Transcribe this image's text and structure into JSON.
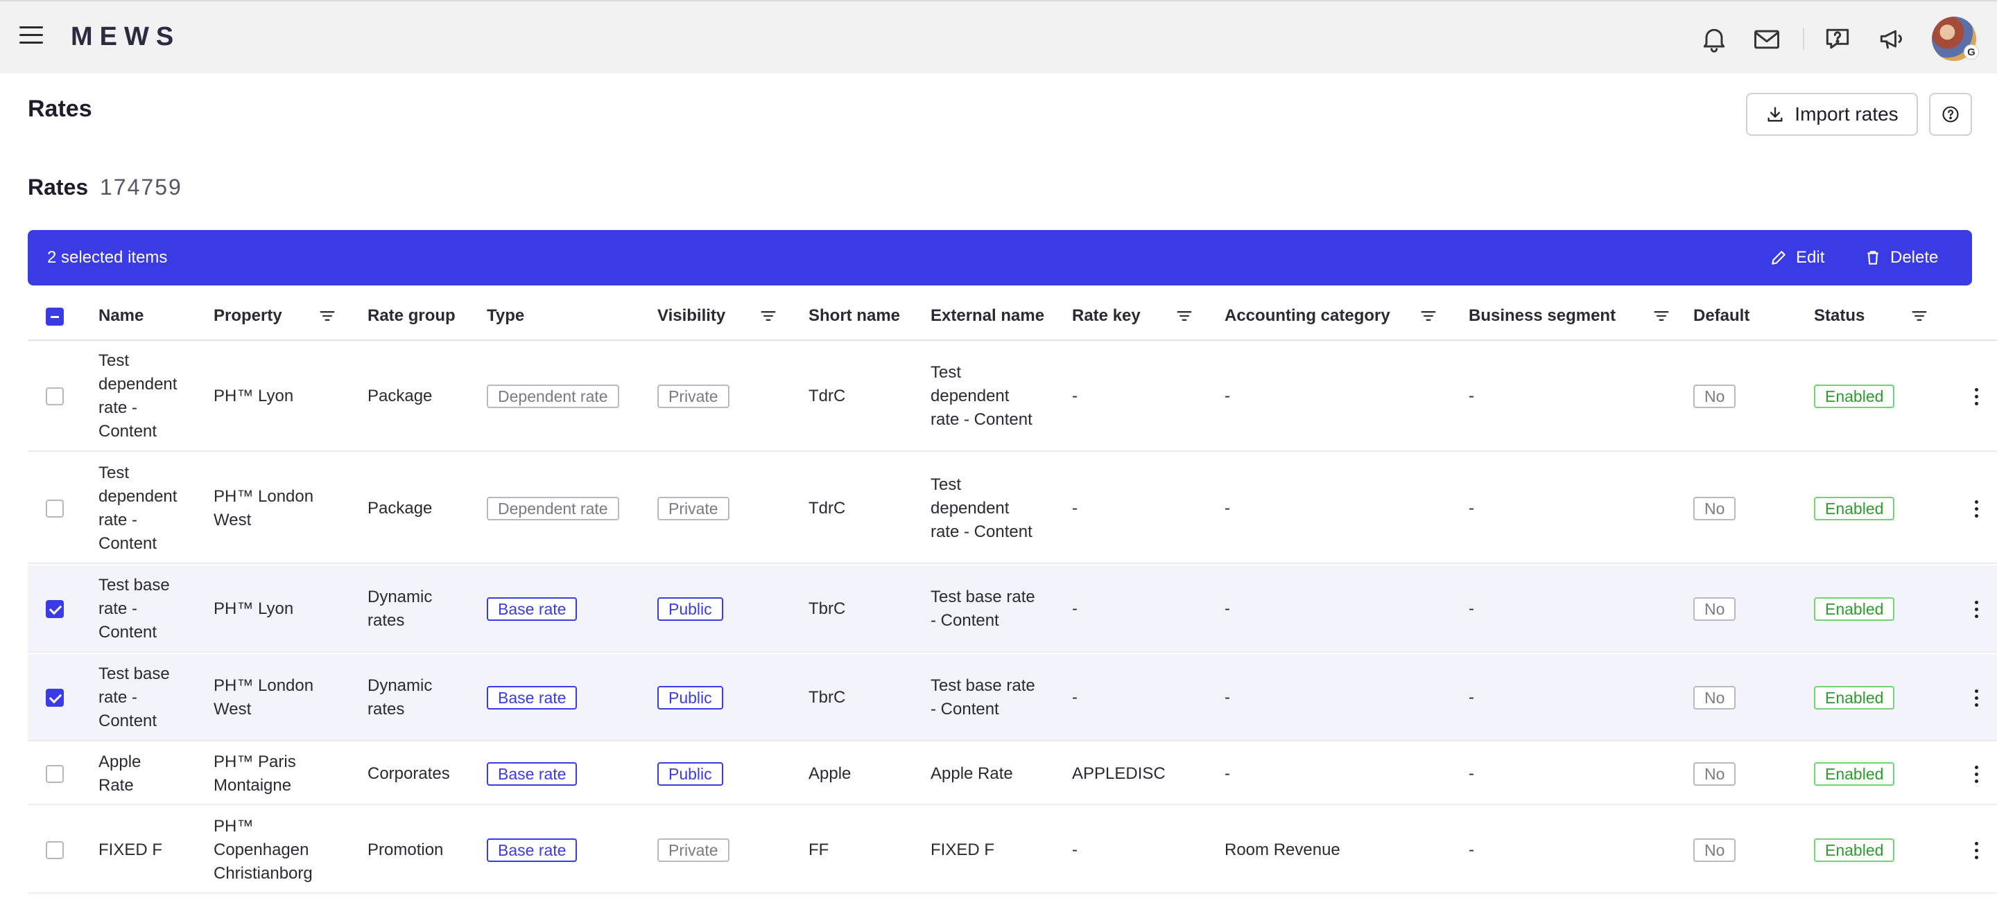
{
  "app": {
    "logo": "MEWS",
    "avatar_badge": "G",
    "icons": [
      "menu-icon",
      "bell-icon",
      "mail-icon",
      "help-chat-icon",
      "megaphone-icon"
    ]
  },
  "page": {
    "title": "Rates",
    "import_label": "Import rates"
  },
  "section": {
    "title": "Rates",
    "count": "174759"
  },
  "selection": {
    "text": "2 selected items",
    "edit_label": "Edit",
    "delete_label": "Delete",
    "accent": "#3b3be6"
  },
  "columns": {
    "name": "Name",
    "property": "Property",
    "rate_group": "Rate group",
    "type": "Type",
    "visibility": "Visibility",
    "short_name": "Short name",
    "external_name": "External name",
    "rate_key": "Rate key",
    "accounting_category": "Accounting category",
    "business_segment": "Business segment",
    "default": "Default",
    "status": "Status"
  },
  "rows": [
    {
      "selected": false,
      "name": [
        "Test",
        "dependent",
        "rate -",
        "Content"
      ],
      "property": [
        "PH™ Lyon"
      ],
      "rate_group": [
        "Package"
      ],
      "type": "Dependent rate",
      "visibility": "Private",
      "short_name": "TdrC",
      "external_name": [
        "Test",
        "dependent",
        "rate - Content"
      ],
      "rate_key": "-",
      "accounting_category": "-",
      "business_segment": "-",
      "default": "No",
      "status": "Enabled"
    },
    {
      "selected": false,
      "name": [
        "Test",
        "dependent",
        "rate -",
        "Content"
      ],
      "property": [
        "PH™ London",
        "West"
      ],
      "rate_group": [
        "Package"
      ],
      "type": "Dependent rate",
      "visibility": "Private",
      "short_name": "TdrC",
      "external_name": [
        "Test",
        "dependent",
        "rate - Content"
      ],
      "rate_key": "-",
      "accounting_category": "-",
      "business_segment": "-",
      "default": "No",
      "status": "Enabled"
    },
    {
      "selected": true,
      "name": [
        "Test base",
        "rate -",
        "Content"
      ],
      "property": [
        "PH™ Lyon"
      ],
      "rate_group": [
        "Dynamic",
        "rates"
      ],
      "type": "Base rate",
      "visibility": "Public",
      "short_name": "TbrC",
      "external_name": [
        "Test base rate",
        "- Content"
      ],
      "rate_key": "-",
      "accounting_category": "-",
      "business_segment": "-",
      "default": "No",
      "status": "Enabled"
    },
    {
      "selected": true,
      "name": [
        "Test base",
        "rate -",
        "Content"
      ],
      "property": [
        "PH™ London",
        "West"
      ],
      "rate_group": [
        "Dynamic",
        "rates"
      ],
      "type": "Base rate",
      "visibility": "Public",
      "short_name": "TbrC",
      "external_name": [
        "Test base rate",
        "- Content"
      ],
      "rate_key": "-",
      "accounting_category": "-",
      "business_segment": "-",
      "default": "No",
      "status": "Enabled"
    },
    {
      "selected": false,
      "name": [
        "Apple",
        "Rate"
      ],
      "property": [
        "PH™ Paris",
        "Montaigne"
      ],
      "rate_group": [
        "Corporates"
      ],
      "type": "Base rate",
      "visibility": "Public",
      "short_name": "Apple",
      "external_name": [
        "Apple Rate"
      ],
      "rate_key": "APPLEDISC",
      "accounting_category": "-",
      "business_segment": "-",
      "default": "No",
      "status": "Enabled"
    },
    {
      "selected": false,
      "name": [
        "FIXED F"
      ],
      "property": [
        "PH™",
        "Copenhagen",
        "Christianborg"
      ],
      "rate_group": [
        "Promotion"
      ],
      "type": "Base rate",
      "visibility": "Private",
      "short_name": "FF",
      "external_name": [
        "FIXED F"
      ],
      "rate_key": "-",
      "accounting_category": "Room Revenue",
      "business_segment": "-",
      "default": "No",
      "status": "Enabled"
    }
  ]
}
